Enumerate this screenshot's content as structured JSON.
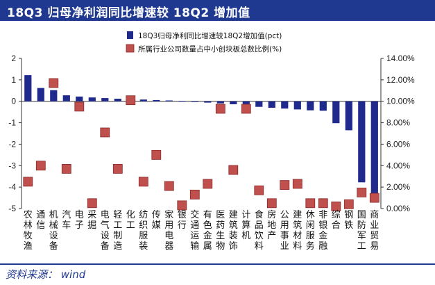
{
  "title": "18Q3 归母净利润同比增速较 18Q2 增加值",
  "source": "资料来源： wind",
  "chart_data": {
    "type": "bar",
    "title": "18Q3 归母净利润同比增速较 18Q2 增加值",
    "categories": [
      "农林牧渔",
      "通信",
      "机械设备",
      "汽车",
      "电子",
      "采掘",
      "电气设备",
      "轻工制造",
      "化工",
      "纺织服装",
      "传媒",
      "家用电器",
      "银行",
      "交通运输",
      "有色金属",
      "医药生物",
      "建筑装饰",
      "计算机",
      "食品饮料",
      "房地产",
      "公用事业",
      "建筑材料",
      "休闲服务",
      "非银金融",
      "综合",
      "钢铁",
      "国防军工",
      "商业贸易"
    ],
    "series": [
      {
        "name": "18Q3归母净利同比增速较18Q2增加值(pct)",
        "type": "bar",
        "axis": "left",
        "color": "#1f2a8c",
        "values": [
          1.22,
          0.62,
          0.52,
          0.28,
          0.22,
          0.18,
          0.15,
          0.12,
          0.1,
          0.08,
          0.06,
          0.04,
          0.02,
          -0.02,
          -0.06,
          -0.1,
          -0.14,
          -0.2,
          -0.26,
          -0.3,
          -0.34,
          -0.38,
          -0.42,
          -0.44,
          -1.02,
          -1.35,
          -3.78,
          -4.72
        ]
      },
      {
        "name": "所属行业公司数量占中小创块板总数比例(%)",
        "type": "scatter",
        "axis": "right",
        "color": "#c0504d",
        "values": [
          2.5,
          4.0,
          11.7,
          3.7,
          9.5,
          0.5,
          7.1,
          3.7,
          10.1,
          2.5,
          5.0,
          2.1,
          0.3,
          1.3,
          2.3,
          9.3,
          3.6,
          9.3,
          1.7,
          0.5,
          2.2,
          2.3,
          0.5,
          0.5,
          0.2,
          0.4,
          1.5,
          1.0
        ]
      }
    ],
    "yaxis_left": {
      "range": [
        -5,
        2
      ],
      "ticks": [
        "2",
        "1",
        "0",
        "-1",
        "-2",
        "-3",
        "-4",
        "-5"
      ]
    },
    "yaxis_right": {
      "range": [
        0,
        14
      ],
      "ticks": [
        "14.00%",
        "12.00%",
        "10.00%",
        "8.00%",
        "6.00%",
        "4.00%",
        "2.00%",
        "0.00%"
      ]
    },
    "legend": [
      "18Q3归母净利同比增速较18Q2增加值(pct)",
      "所属行业公司数量占中小创块板总数比例(%)"
    ],
    "legend_position": "top-right",
    "grid": false
  }
}
